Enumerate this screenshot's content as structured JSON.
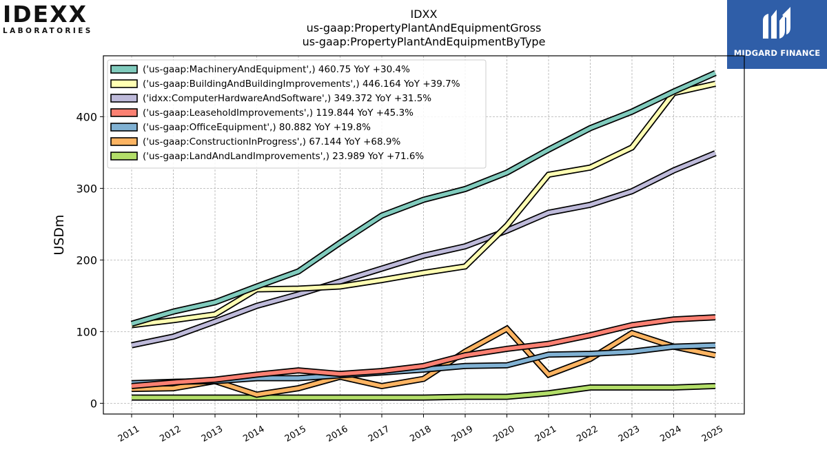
{
  "logos": {
    "left_word": "IDEXX",
    "left_sub": "LABORATORIES",
    "right_brand": "MIDGARD FINANCE"
  },
  "chart_data": {
    "type": "line",
    "title": [
      "IDXX",
      "us-gaap:PropertyPlantAndEquipmentGross",
      "us-gaap:PropertyPlantAndEquipmentByType"
    ],
    "xlabel": "",
    "ylabel": "USDm",
    "x": [
      "2011",
      "2012",
      "2013",
      "2014",
      "2015",
      "2016",
      "2017",
      "2018",
      "2019",
      "2020",
      "2021",
      "2022",
      "2023",
      "2024",
      "2025"
    ],
    "ylim": [
      -15,
      485
    ],
    "yticks": [
      0,
      100,
      200,
      300,
      400
    ],
    "grid": true,
    "legend_position": "top-left",
    "series": [
      {
        "name": "('us-gaap:MachineryAndEquipment',) 460.75 YoY +30.4%",
        "color": "#80cbbd",
        "values": [
          111,
          128,
          141,
          163,
          184,
          224,
          262,
          284,
          299,
          322,
          354,
          384,
          407,
          435,
          461
        ]
      },
      {
        "name": "('us-gaap:BuildingAndBuildingImprovements',) 446.164 YoY +39.7%",
        "color": "#ffffb3",
        "values": [
          109,
          116,
          124,
          159,
          160,
          163,
          172,
          182,
          191,
          248,
          319,
          329,
          357,
          433,
          446
        ]
      },
      {
        "name": "('idxx:ComputerHardwareAndSoftware',) 349.372 YoY +31.5%",
        "color": "#bebada",
        "values": [
          81,
          93,
          114,
          136,
          152,
          170,
          188,
          206,
          219,
          241,
          266,
          277,
          296,
          325,
          349
        ]
      },
      {
        "name": "('us-gaap:LeaseholdImprovements',) 119.844 YoY +45.3%",
        "color": "#fb8072",
        "values": [
          24,
          29,
          33,
          40,
          46,
          41,
          45,
          52,
          67,
          76,
          83,
          95,
          109,
          117,
          120
        ]
      },
      {
        "name": "('us-gaap:OfficeEquipment',) 80.882 YoY +19.8%",
        "color": "#80b1d3",
        "values": [
          28,
          30,
          31,
          35,
          35,
          39,
          43,
          47,
          52,
          53,
          68,
          69,
          72,
          79,
          81
        ]
      },
      {
        "name": "('us-gaap:ConstructionInProgress',) 67.144 YoY +68.9%",
        "color": "#fdb462",
        "values": [
          20,
          21,
          31,
          12,
          21,
          37,
          24,
          34,
          72,
          104,
          40,
          62,
          98,
          79,
          67
        ]
      },
      {
        "name": "('us-gaap:LandAndLandImprovements',) 23.989 YoY +71.6%",
        "color": "#b3de69",
        "values": [
          8,
          8,
          8,
          8,
          8,
          8,
          8,
          8,
          9,
          9,
          14,
          22,
          22,
          22,
          24
        ]
      }
    ]
  }
}
